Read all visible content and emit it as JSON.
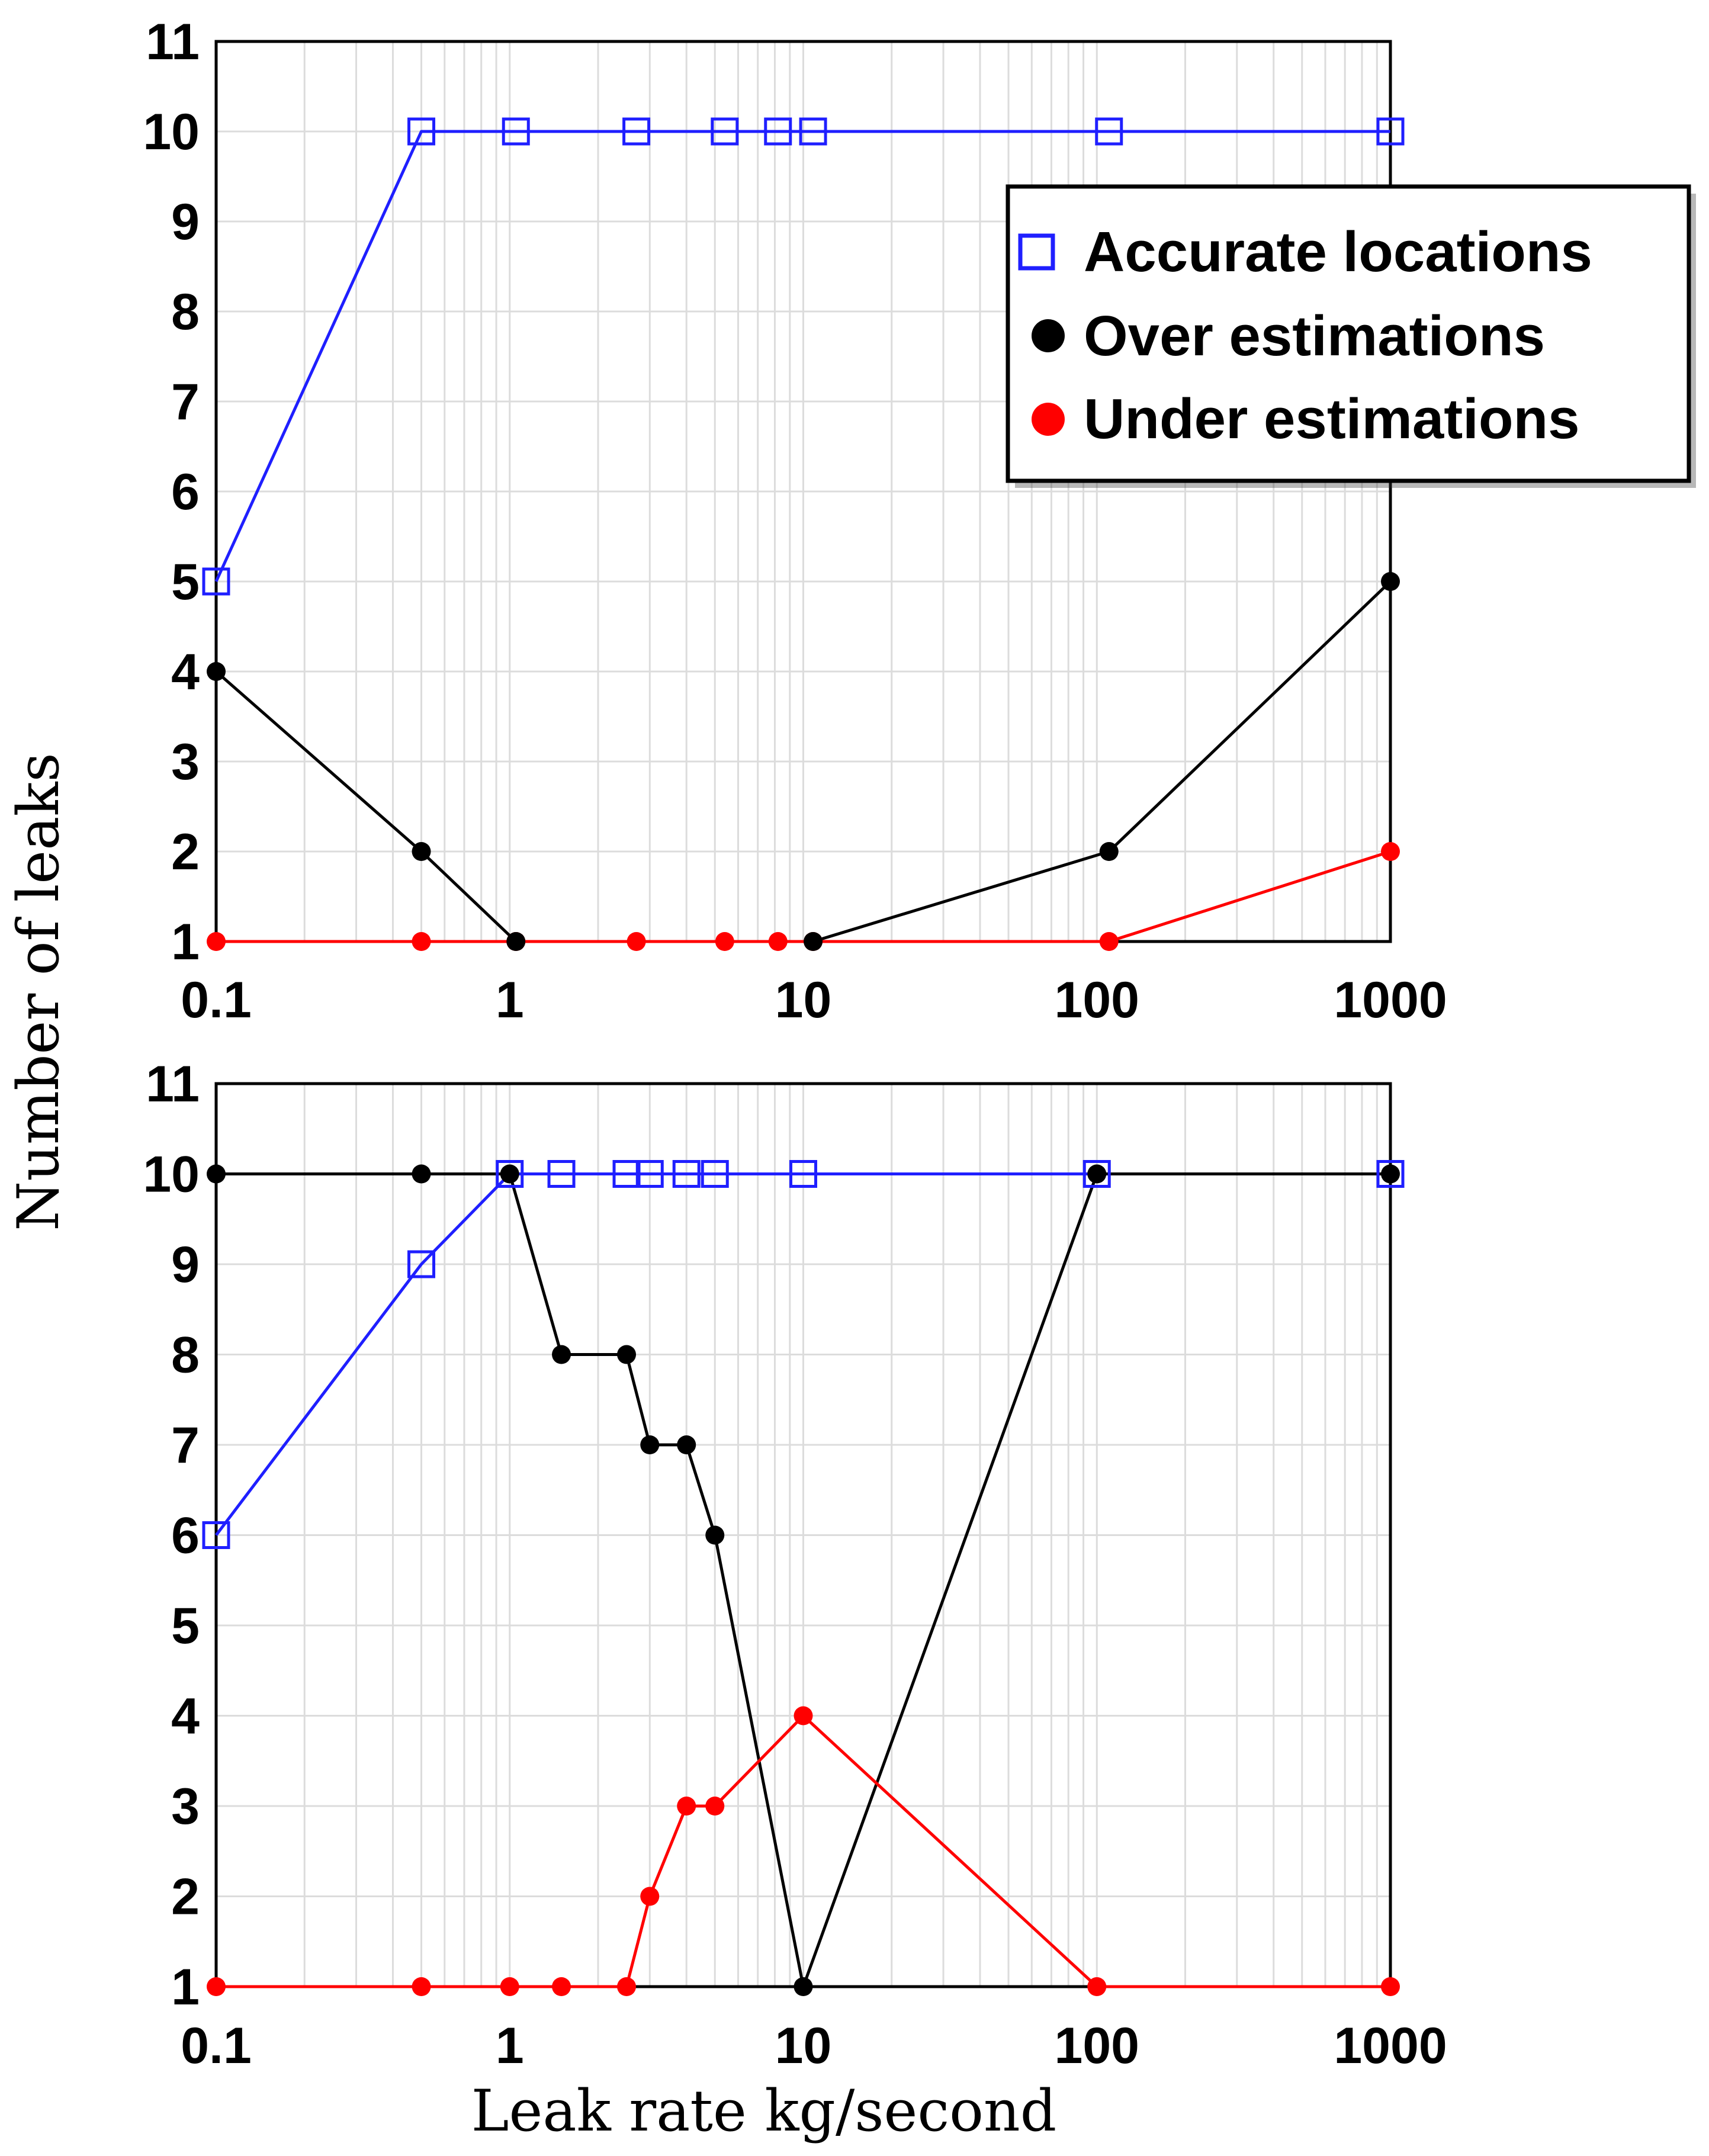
{
  "colors": {
    "accurate": "#1f1fff",
    "over": "#000000",
    "under": "#ff0000",
    "grid": "#dcdcdc"
  },
  "ylabel": "Number of leaks",
  "xlabel": "Leak rate kg/second",
  "chart_data": [
    {
      "type": "line",
      "panel": "top",
      "xscale": "log",
      "xlim": [
        0.1,
        1000
      ],
      "ylim": [
        1,
        11
      ],
      "xticks": [
        {
          "value": 0.1,
          "label": "0.1"
        },
        {
          "value": 1,
          "label": "1"
        },
        {
          "value": 10,
          "label": "10"
        },
        {
          "value": 100,
          "label": "100"
        },
        {
          "value": 1000,
          "label": "1000"
        }
      ],
      "yticks": [
        {
          "value": 1,
          "label": "1"
        },
        {
          "value": 2,
          "label": "2"
        },
        {
          "value": 3,
          "label": "3"
        },
        {
          "value": 4,
          "label": "4"
        },
        {
          "value": 5,
          "label": "5"
        },
        {
          "value": 6,
          "label": "6"
        },
        {
          "value": 7,
          "label": "7"
        },
        {
          "value": 8,
          "label": "8"
        },
        {
          "value": 9,
          "label": "9"
        },
        {
          "value": 10,
          "label": "10"
        },
        {
          "value": 11,
          "label": "11"
        }
      ],
      "legend": {
        "position": "top-right",
        "entries": [
          "Accurate locations",
          "Over estimations",
          "Under estimations"
        ]
      },
      "series": [
        {
          "key": "accurate",
          "name": "Accurate locations",
          "marker": "open-square",
          "x": [
            0.1,
            0.5,
            1.05,
            2.7,
            5.4,
            8.2,
            10.8,
            110,
            1000
          ],
          "y": [
            5,
            10,
            10,
            10,
            10,
            10,
            10,
            10,
            10
          ]
        },
        {
          "key": "over",
          "name": "Over estimations",
          "marker": "filled-circle",
          "x": [
            0.1,
            0.5,
            1.05,
            10.8,
            110,
            1000
          ],
          "y": [
            4,
            2,
            1,
            1,
            2,
            5
          ]
        },
        {
          "key": "under",
          "name": "Under estimations",
          "marker": "filled-circle",
          "x": [
            0.1,
            0.5,
            1.05,
            2.7,
            5.4,
            8.2,
            10.8,
            110,
            1000
          ],
          "y": [
            1,
            1,
            1,
            1,
            1,
            1,
            1,
            1,
            2
          ]
        }
      ]
    },
    {
      "type": "line",
      "panel": "bottom",
      "xscale": "log",
      "xlim": [
        0.1,
        1000
      ],
      "ylim": [
        1,
        11
      ],
      "xticks": [
        {
          "value": 0.1,
          "label": "0.1"
        },
        {
          "value": 1,
          "label": "1"
        },
        {
          "value": 10,
          "label": "10"
        },
        {
          "value": 100,
          "label": "100"
        },
        {
          "value": 1000,
          "label": "1000"
        }
      ],
      "yticks": [
        {
          "value": 1,
          "label": "1"
        },
        {
          "value": 2,
          "label": "2"
        },
        {
          "value": 3,
          "label": "3"
        },
        {
          "value": 4,
          "label": "4"
        },
        {
          "value": 5,
          "label": "5"
        },
        {
          "value": 6,
          "label": "6"
        },
        {
          "value": 7,
          "label": "7"
        },
        {
          "value": 8,
          "label": "8"
        },
        {
          "value": 9,
          "label": "9"
        },
        {
          "value": 10,
          "label": "10"
        },
        {
          "value": 11,
          "label": "11"
        }
      ],
      "series": [
        {
          "key": "accurate",
          "name": "Accurate locations",
          "marker": "open-square",
          "x": [
            0.1,
            0.5,
            1,
            1.5,
            2.5,
            3,
            4,
            5,
            10,
            100,
            1000
          ],
          "y": [
            6,
            9,
            10,
            10,
            10,
            10,
            10,
            10,
            10,
            10,
            10
          ]
        },
        {
          "key": "over",
          "name": "Over estimations",
          "marker": "filled-circle",
          "x": [
            0.1,
            0.5,
            1,
            1.5,
            2.5,
            3,
            4,
            5,
            10,
            100,
            1000
          ],
          "y": [
            10,
            10,
            10,
            8,
            8,
            7,
            7,
            6,
            1,
            10,
            10
          ]
        },
        {
          "key": "under",
          "name": "Under estimations",
          "marker": "filled-circle",
          "x": [
            0.1,
            0.5,
            1,
            1.5,
            2.5,
            3,
            4,
            5,
            10,
            100,
            1000
          ],
          "y": [
            1,
            1,
            1,
            1,
            1,
            2,
            3,
            3,
            4,
            1,
            1
          ]
        }
      ]
    }
  ]
}
